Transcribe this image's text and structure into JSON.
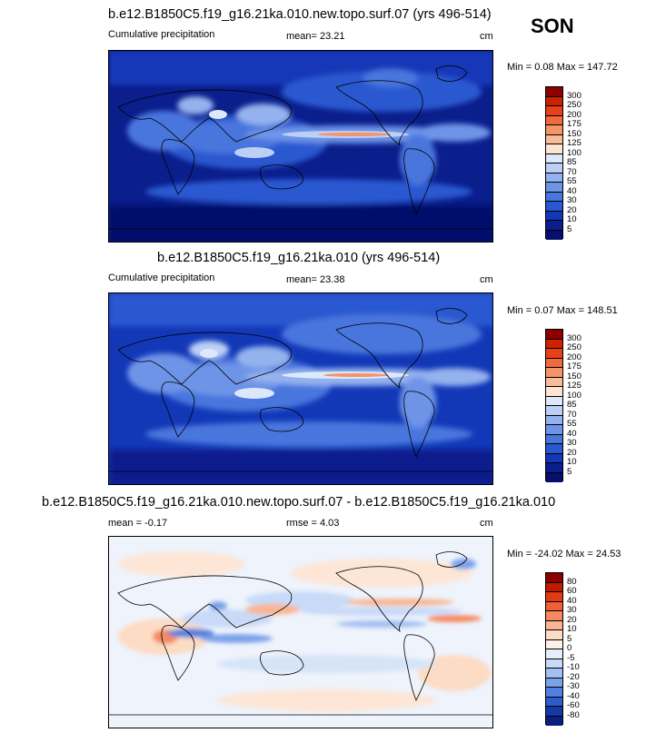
{
  "season": "SON",
  "panels": [
    {
      "title": "b.e12.B1850C5.f19_g16.21ka.010.new.topo.surf.07 (yrs 496-514)",
      "left_label": "Cumulative precipitation",
      "mid_label": "mean=  23.21",
      "units": "cm",
      "minmax": "Min =   0.08 Max = 147.72",
      "levels": [
        "300",
        "250",
        "200",
        "175",
        "150",
        "125",
        "100",
        "85",
        "70",
        "55",
        "40",
        "30",
        "20",
        "10",
        "5"
      ],
      "colors": [
        "#8b0000",
        "#cc2200",
        "#e8401a",
        "#f06a3c",
        "#f59466",
        "#f8bd98",
        "#fde6cf",
        "#dde8fb",
        "#bcd0f5",
        "#94b2ee",
        "#6e94e8",
        "#4876dd",
        "#2a58d0",
        "#1238b8",
        "#0a1e8c",
        "#06106a"
      ]
    },
    {
      "title": "b.e12.B1850C5.f19_g16.21ka.010 (yrs 496-514)",
      "left_label": "Cumulative precipitation",
      "mid_label": "mean=  23.38",
      "units": "cm",
      "minmax": "Min =  0.07 Max = 148.51",
      "levels": [
        "300",
        "250",
        "200",
        "175",
        "150",
        "125",
        "100",
        "85",
        "70",
        "55",
        "40",
        "30",
        "20",
        "10",
        "5"
      ],
      "colors": [
        "#8b0000",
        "#cc2200",
        "#e8401a",
        "#f06a3c",
        "#f59466",
        "#f8bd98",
        "#fde6cf",
        "#dde8fb",
        "#bcd0f5",
        "#94b2ee",
        "#6e94e8",
        "#4876dd",
        "#2a58d0",
        "#1238b8",
        "#0a1e8c",
        "#06106a"
      ]
    },
    {
      "title": "b.e12.B1850C5.f19_g16.21ka.010.new.topo.surf.07 - b.e12.B1850C5.f19_g16.21ka.010",
      "left_label": "mean =  -0.17",
      "mid_label": "rmse =   4.03",
      "units": "cm",
      "minmax": "Min = -24.02 Max =  24.53",
      "levels": [
        "80",
        "60",
        "40",
        "30",
        "20",
        "10",
        "5",
        "0",
        "-5",
        "-10",
        "-20",
        "-30",
        "-40",
        "-60",
        "-80"
      ],
      "colors": [
        "#8b0000",
        "#c21a00",
        "#e23a15",
        "#f06038",
        "#f58a62",
        "#f9b592",
        "#fcdcc4",
        "#fdf0e4",
        "#e6eefb",
        "#c8daf7",
        "#a2c0f2",
        "#7ca2ea",
        "#5280de",
        "#2d5ccb",
        "#1538a8",
        "#0a1e80"
      ]
    }
  ]
}
